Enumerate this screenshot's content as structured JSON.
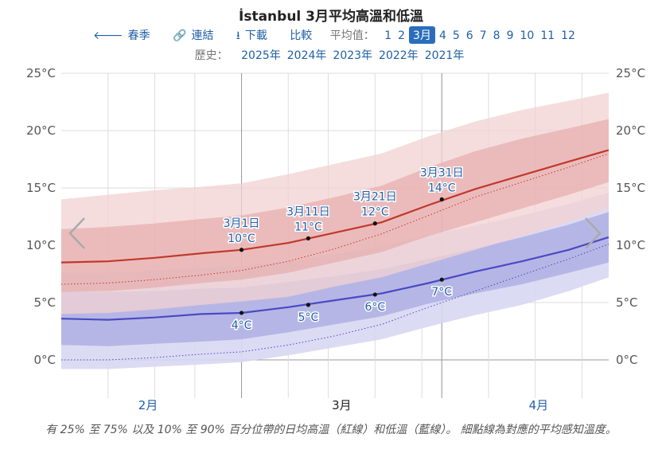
{
  "title": "İstanbul 3月平均高溫和低溫",
  "nav": {
    "back_label": "春季",
    "link_label": "連結",
    "download_label": "下載",
    "compare_label": "比較",
    "average_label": "平均值：",
    "months": [
      "1",
      "2",
      "3月",
      "4",
      "5",
      "6",
      "7",
      "8",
      "9",
      "10",
      "11",
      "12"
    ],
    "selected_month_index": 2
  },
  "history": {
    "label": "歷史：",
    "years": [
      "2025年",
      "2024年",
      "2023年",
      "2022年",
      "2021年"
    ]
  },
  "caption": "有 25% 至 75% 以及 10% 至 90% 百分位帶的日均高溫（紅線）和低溫（藍線）。 細點線為對應的平均感知溫度。",
  "colors": {
    "high_line": "#c0392b",
    "low_line": "#4a4ac4",
    "high_band_inner": "#e4a5a5",
    "high_band_outer": "#f1d2d2",
    "low_band_inner": "#a9a9e2",
    "low_band_outer": "#d7d7f3",
    "label_text": "#1f5fa8"
  },
  "chart_data": {
    "type": "area",
    "x_unit": "day offset from 3月1日",
    "x_range": [
      -27,
      55
    ],
    "ylim": [
      -3,
      25
    ],
    "y_ticks": [
      0,
      5,
      10,
      15,
      20,
      25
    ],
    "y_tick_labels": [
      "0°C",
      "5°C",
      "10°C",
      "15°C",
      "20°C",
      "25°C"
    ],
    "x_month_labels": [
      {
        "label": "2月",
        "x": -14
      },
      {
        "label": "3月",
        "x": 15
      },
      {
        "label": "4月",
        "x": 44.5
      }
    ],
    "x_gridlines": [
      -20,
      -13,
      -7,
      0,
      7,
      13,
      20,
      27,
      30,
      37,
      44,
      51
    ],
    "x_major_lines": [
      0,
      30
    ],
    "x": [
      -27,
      -20,
      -13,
      -6,
      0,
      7,
      14,
      21,
      28,
      35,
      42,
      49,
      55
    ],
    "series": [
      {
        "values": [
          8.5,
          8.6,
          8.9,
          9.3,
          9.6,
          10.2,
          11.1,
          12.0,
          13.5,
          14.9,
          16.1,
          17.3,
          18.3
        ]
      },
      {
        "values": [
          6.6,
          6.7,
          7.0,
          7.4,
          7.8,
          8.6,
          9.7,
          11.0,
          12.6,
          14.2,
          15.5,
          16.8,
          18.0
        ]
      },
      {
        "values": [
          3.6,
          3.5,
          3.7,
          4.0,
          4.1,
          4.6,
          5.2,
          5.8,
          6.7,
          7.7,
          8.6,
          9.6,
          10.7
        ]
      },
      {
        "values": [
          0.0,
          0.0,
          0.2,
          0.5,
          0.7,
          1.3,
          2.1,
          3.1,
          4.6,
          6.0,
          7.4,
          8.8,
          10.1
        ]
      },
      {
        "values": [
          11.4,
          11.6,
          11.9,
          12.3,
          12.6,
          13.3,
          14.2,
          15.2,
          16.8,
          18.2,
          19.3,
          20.2,
          21.0
        ]
      },
      {
        "values": [
          5.9,
          6.0,
          6.3,
          6.7,
          7.0,
          7.6,
          8.5,
          9.4,
          10.8,
          12.0,
          13.2,
          14.4,
          15.5
        ]
      },
      {
        "values": [
          14.0,
          14.4,
          14.8,
          15.1,
          15.4,
          16.2,
          17.1,
          18.0,
          19.5,
          20.8,
          21.8,
          22.6,
          23.3
        ]
      },
      {
        "values": [
          4.0,
          4.1,
          4.4,
          4.8,
          5.1,
          5.5,
          6.4,
          7.2,
          8.4,
          9.6,
          10.8,
          12.0,
          13.2
        ]
      },
      {
        "values": [
          5.9,
          5.9,
          6.0,
          6.2,
          6.3,
          6.8,
          7.3,
          7.9,
          8.8,
          9.7,
          10.7,
          11.8,
          12.9
        ]
      },
      {
        "values": [
          1.3,
          1.2,
          1.4,
          1.6,
          1.8,
          2.4,
          3.1,
          3.8,
          4.9,
          5.8,
          6.6,
          7.6,
          8.5
        ]
      },
      {
        "values": [
          7.6,
          7.6,
          7.8,
          8.0,
          8.2,
          8.6,
          9.2,
          9.9,
          10.9,
          11.7,
          12.6,
          13.6,
          14.6
        ]
      },
      {
        "values": [
          -0.8,
          -0.8,
          -0.6,
          -0.4,
          -0.2,
          0.4,
          1.1,
          1.8,
          2.9,
          3.9,
          4.8,
          6.0,
          7.2
        ]
      }
    ],
    "annotations": [
      {
        "x": 0,
        "y": 9.6,
        "date": "3月1日",
        "temp": "10°C",
        "pos": "above"
      },
      {
        "x": 10,
        "y": 10.6,
        "date": "3月11日",
        "temp": "11°C",
        "pos": "above"
      },
      {
        "x": 20,
        "y": 11.9,
        "date": "3月21日",
        "temp": "12°C",
        "pos": "above"
      },
      {
        "x": 30,
        "y": 14.0,
        "date": "3月31日",
        "temp": "14°C",
        "pos": "above"
      },
      {
        "x": 0,
        "y": 4.1,
        "temp": "4°C",
        "pos": "below"
      },
      {
        "x": 10,
        "y": 4.8,
        "temp": "5°C",
        "pos": "below"
      },
      {
        "x": 20,
        "y": 5.7,
        "temp": "6°C",
        "pos": "below"
      },
      {
        "x": 30,
        "y": 7.0,
        "temp": "7°C",
        "pos": "below"
      }
    ]
  }
}
